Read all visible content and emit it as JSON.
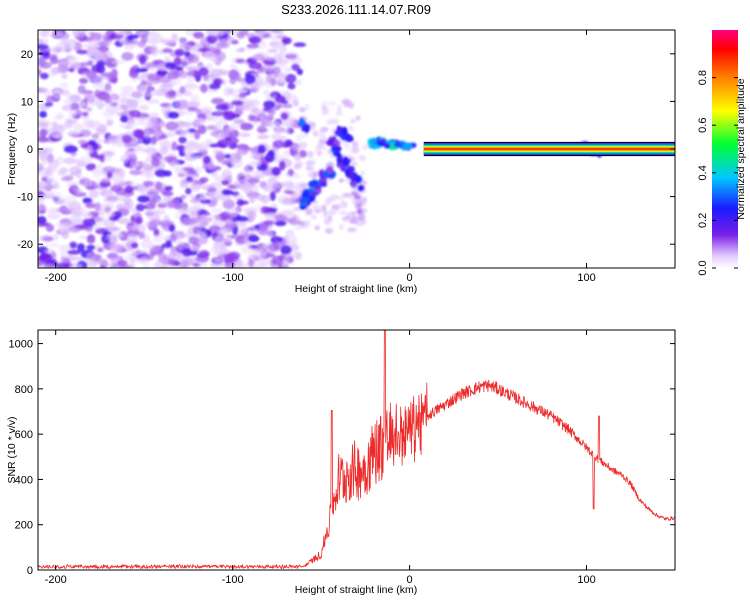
{
  "title": "S233.2026.111.14.07.R09",
  "chart_data": [
    {
      "type": "heatmap",
      "xlabel": "Height of straight line (km)",
      "ylabel": "Frequency (Hz)",
      "xlim": [
        -210,
        150
      ],
      "ylim": [
        -25,
        25
      ],
      "xticks": [
        -200,
        -100,
        0,
        100
      ],
      "yticks": [
        -20,
        -10,
        0,
        10,
        20
      ],
      "colorbar": {
        "label": "Normalized spectral amplitude",
        "range": [
          0,
          1
        ],
        "ticks": [
          "0.0",
          "0.2",
          "0.4",
          "0.6",
          "0.8"
        ],
        "colors": [
          "#ffffff",
          "#e4ccff",
          "#7a1fe6",
          "#1a1aff",
          "#00c8ff",
          "#00ff33",
          "#ffff00",
          "#ff8000",
          "#ff0000",
          "#ff0080"
        ]
      },
      "features": [
        {
          "name": "noise",
          "x_range": [
            -210,
            -65
          ],
          "y_range": [
            -25,
            25
          ]
        },
        {
          "name": "transition",
          "x_range": [
            -65,
            -20
          ]
        },
        {
          "name": "carrier",
          "frequency_hz": 0,
          "x_range": [
            -25,
            150
          ]
        }
      ]
    },
    {
      "type": "line",
      "xlabel": "Height of straight line (km)",
      "ylabel": "SNR (10 * v/v)",
      "xlim": [
        -210,
        150
      ],
      "ylim": [
        0,
        1060
      ],
      "xticks": [
        -200,
        -100,
        0,
        100
      ],
      "yticks": [
        0,
        200,
        400,
        600,
        800,
        1000
      ],
      "series": [
        {
          "name": "SNR",
          "color": "#ee2a2a",
          "x": [
            -210,
            -100,
            -60,
            -50,
            -45,
            -42,
            -40,
            -35,
            -30,
            -25,
            -20,
            -16,
            -10,
            -5,
            0,
            10,
            20,
            30,
            40,
            45,
            50,
            60,
            70,
            80,
            90,
            95,
            100,
            105,
            110,
            115,
            120,
            125,
            130,
            135,
            140,
            145,
            150
          ],
          "y": [
            15,
            15,
            15,
            70,
            220,
            330,
            400,
            420,
            440,
            450,
            520,
            560,
            590,
            600,
            620,
            680,
            730,
            780,
            810,
            815,
            800,
            760,
            720,
            680,
            620,
            580,
            540,
            500,
            470,
            440,
            420,
            380,
            310,
            270,
            240,
            225,
            230
          ]
        }
      ]
    }
  ]
}
